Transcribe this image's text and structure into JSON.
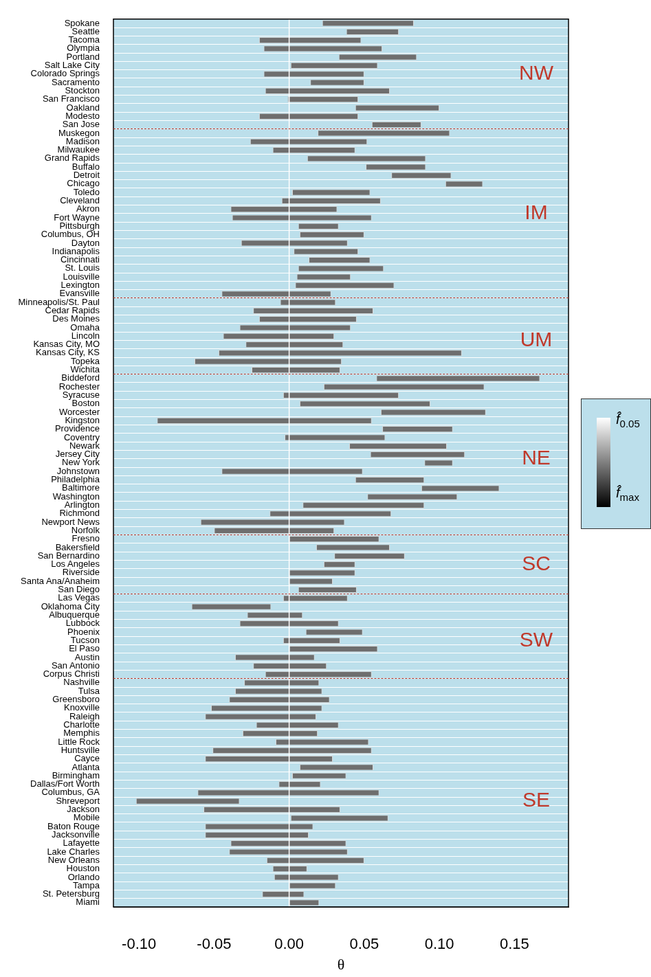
{
  "chart_data": {
    "type": "bar",
    "orientation": "horizontal",
    "xlabel": "θ",
    "categories": [
      "Spokane",
      "Seattle",
      "Tacoma",
      "Olympia",
      "Portland",
      "Salt Lake City",
      "Colorado Springs",
      "Sacramento",
      "Stockton",
      "San Francisco",
      "Oakland",
      "Modesto",
      "San Jose",
      "Muskegon",
      "Madison",
      "Milwaukee",
      "Grand Rapids",
      "Buffalo",
      "Detroit",
      "Chicago",
      "Toledo",
      "Cleveland",
      "Akron",
      "Fort Wayne",
      "Pittsburgh",
      "Columbus, OH",
      "Dayton",
      "Indianapolis",
      "Cincinnati",
      "St. Louis",
      "Louisville",
      "Lexington",
      "Evansville",
      "Minneapolis/St. Paul",
      "Cedar Rapids",
      "Des Moines",
      "Omaha",
      "Lincoln",
      "Kansas City, MO",
      "Kansas City, KS",
      "Topeka",
      "Wichita",
      "Biddeford",
      "Rochester",
      "Syracuse",
      "Boston",
      "Worcester",
      "Kingston",
      "Providence",
      "Coventry",
      "Newark",
      "Jersey City",
      "New York",
      "Johnstown",
      "Philadelphia",
      "Baltimore",
      "Washington",
      "Arlington",
      "Richmond",
      "Newport News",
      "Norfolk",
      "Fresno",
      "Bakersfield",
      "San Bernardino",
      "Los Angeles",
      "Riverside",
      "Santa Ana/Anaheim",
      "San Diego",
      "Las Vegas",
      "Oklahoma City",
      "Albuquerque",
      "Lubbock",
      "Phoenix",
      "Tucson",
      "El Paso",
      "Austin",
      "San Antonio",
      "Corpus Christi",
      "Nashville",
      "Tulsa",
      "Greensboro",
      "Knoxville",
      "Raleigh",
      "Charlotte",
      "Memphis",
      "Little Rock",
      "Huntsville",
      "Cayce",
      "Atlanta",
      "Birmingham",
      "Dallas/Fort Worth",
      "Columbus, GA",
      "Shreveport",
      "Jackson",
      "Mobile",
      "Baton Rouge",
      "Jacksonville",
      "Lafayette",
      "Lake Charles",
      "New Orleans",
      "Houston",
      "Orlando",
      "Tampa",
      "St. Petersburg",
      "Miami"
    ],
    "base": [
      0.022,
      0.038,
      -0.02,
      -0.017,
      0.033,
      0.001,
      -0.017,
      0.014,
      -0.016,
      -0.001,
      0.044,
      -0.02,
      0.055,
      0.019,
      -0.026,
      -0.011,
      0.012,
      0.051,
      0.068,
      0.104,
      0.002,
      -0.005,
      -0.039,
      -0.038,
      0.006,
      0.007,
      -0.032,
      0.003,
      0.013,
      0.006,
      0.005,
      0.004,
      -0.045,
      -0.006,
      -0.024,
      -0.02,
      -0.033,
      -0.044,
      -0.029,
      -0.047,
      -0.063,
      -0.025,
      0.058,
      0.023,
      -0.004,
      0.007,
      0.061,
      -0.088,
      0.062,
      -0.003,
      0.04,
      0.054,
      0.09,
      -0.045,
      0.044,
      0.088,
      0.052,
      0.009,
      -0.013,
      -0.059,
      -0.05,
      0.0,
      0.018,
      0.03,
      0.023,
      0.0,
      0.0,
      0.006,
      -0.004,
      -0.065,
      -0.028,
      -0.033,
      0.011,
      -0.004,
      0.0,
      -0.036,
      -0.024,
      -0.016,
      -0.03,
      -0.036,
      -0.04,
      -0.052,
      -0.056,
      -0.022,
      -0.031,
      -0.009,
      -0.051,
      -0.056,
      0.007,
      0.002,
      -0.007,
      -0.061,
      -0.102,
      -0.057,
      0.001,
      -0.056,
      -0.056,
      -0.039,
      -0.04,
      -0.015,
      -0.011,
      -0.01,
      0.0,
      -0.018,
      0.0
    ],
    "values": [
      0.061,
      0.035,
      0.068,
      0.079,
      0.052,
      0.058,
      0.067,
      0.036,
      0.083,
      0.047,
      0.056,
      0.066,
      0.033,
      0.088,
      0.078,
      0.055,
      0.079,
      0.04,
      0.04,
      0.025,
      0.052,
      0.066,
      0.071,
      0.093,
      0.027,
      0.043,
      0.071,
      0.043,
      0.041,
      0.057,
      0.036,
      0.066,
      0.073,
      0.037,
      0.08,
      0.065,
      0.074,
      0.074,
      0.065,
      0.162,
      0.098,
      0.059,
      0.109,
      0.107,
      0.077,
      0.087,
      0.07,
      0.143,
      0.047,
      0.067,
      0.065,
      0.063,
      0.019,
      0.094,
      0.046,
      0.052,
      0.06,
      0.081,
      0.081,
      0.096,
      0.08,
      0.06,
      0.049,
      0.047,
      0.021,
      0.044,
      0.029,
      0.039,
      0.043,
      0.053,
      0.037,
      0.066,
      0.038,
      0.038,
      0.059,
      0.053,
      0.049,
      0.071,
      0.05,
      0.058,
      0.067,
      0.074,
      0.074,
      0.055,
      0.05,
      0.062,
      0.106,
      0.085,
      0.049,
      0.036,
      0.028,
      0.121,
      0.069,
      0.091,
      0.065,
      0.072,
      0.069,
      0.077,
      0.079,
      0.065,
      0.023,
      0.043,
      0.031,
      0.028,
      0.02
    ],
    "color": "#6e6e6e",
    "xlim": [
      -0.117,
      0.186
    ],
    "xticks": [
      {
        "value": -0.1,
        "label": "-0.10"
      },
      {
        "value": -0.05,
        "label": "-0.05"
      },
      {
        "value": 0,
        "label": "0.00"
      },
      {
        "value": 0.05,
        "label": "0.05"
      },
      {
        "value": 0.1,
        "label": "0.10"
      },
      {
        "value": 0.15,
        "label": "0.15"
      }
    ],
    "grid": "y",
    "ref_lines": [
      {
        "axis": "x",
        "value": 0,
        "color": "#ffffff",
        "line_style": "solid"
      }
    ],
    "annotations": [
      "NW",
      "IM",
      "UM",
      "NE",
      "SC",
      "SW",
      "SE",
      "f̂$_{0.05}$",
      "f̂$_{max}$"
    ]
  }
}
